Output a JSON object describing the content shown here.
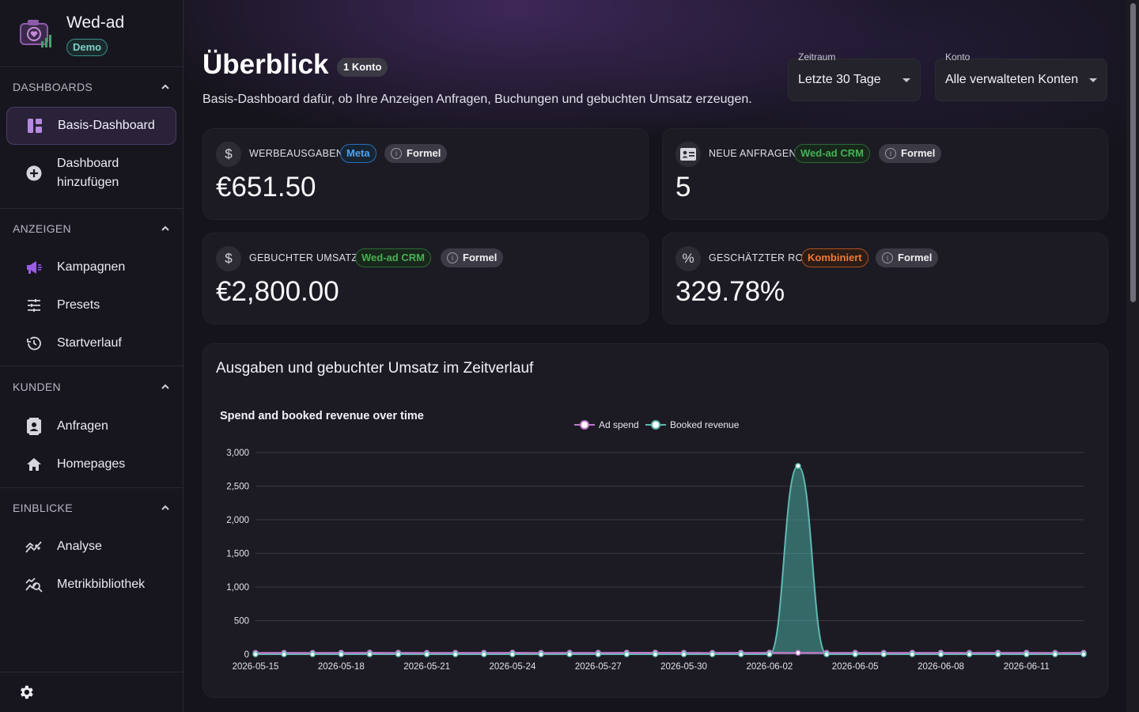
{
  "brand": {
    "name": "Wed-ad",
    "badge": "Demo"
  },
  "sidebar": {
    "sections": [
      {
        "title": "DASHBOARDS",
        "items": [
          {
            "label": "Basis-Dashboard",
            "icon": "dashboard-icon"
          },
          {
            "label": "Dashboard hinzufügen",
            "icon": "add-circle-icon"
          }
        ]
      },
      {
        "title": "ANZEIGEN",
        "items": [
          {
            "label": "Kampagnen",
            "icon": "megaphone-icon"
          },
          {
            "label": "Presets",
            "icon": "tune-icon"
          },
          {
            "label": "Startverlauf",
            "icon": "history-icon"
          }
        ]
      },
      {
        "title": "KUNDEN",
        "items": [
          {
            "label": "Anfragen",
            "icon": "contact-icon"
          },
          {
            "label": "Homepages",
            "icon": "home-icon"
          }
        ]
      },
      {
        "title": "EINBLICKE",
        "items": [
          {
            "label": "Analyse",
            "icon": "analytics-icon"
          },
          {
            "label": "Metrikbibliothek",
            "icon": "query-stats-icon"
          }
        ]
      }
    ]
  },
  "header": {
    "title": "Überblick",
    "badge": "1 Konto",
    "subtitle": "Basis-Dashboard dafür, ob Ihre Anzeigen Anfragen, Buchungen und gebuchten Umsatz erzeugen.",
    "period": {
      "label": "Zeitraum",
      "value": "Letzte 30 Tage"
    },
    "account": {
      "label": "Konto",
      "value": "Alle verwalteten Konten"
    }
  },
  "kpis": [
    {
      "label": "WERBEAUSGABEN",
      "source": "Meta",
      "formula": "Formel",
      "value": "€651.50",
      "icon_glyph": "$"
    },
    {
      "label": "NEUE ANFRAGEN",
      "source": "Wed-ad CRM",
      "formula": "Formel",
      "value": "5",
      "icon_glyph": "id"
    },
    {
      "label": "GEBUCHTER UMSATZ",
      "source": "Wed-ad CRM",
      "formula": "Formel",
      "value": "€2,800.00",
      "icon_glyph": "$"
    },
    {
      "label": "GESCHÄTZTER ROI",
      "source": "Kombiniert",
      "formula": "Formel",
      "value": "329.78%",
      "icon_glyph": "%"
    }
  ],
  "chart_section": {
    "heading": "Ausgaben und gebuchter Umsatz im Zeitverlauf"
  },
  "chart_data": {
    "type": "area",
    "title": "Spend and booked revenue over time",
    "xlabel": "",
    "ylabel": "",
    "ylim": [
      0,
      3000
    ],
    "yticks": [
      0,
      500,
      1000,
      1500,
      2000,
      2500,
      3000
    ],
    "ytick_labels": [
      "0",
      "500",
      "1,000",
      "1,500",
      "2,000",
      "2,500",
      "3,000"
    ],
    "x": [
      "2026-05-15",
      "2026-05-16",
      "2026-05-17",
      "2026-05-18",
      "2026-05-19",
      "2026-05-20",
      "2026-05-21",
      "2026-05-22",
      "2026-05-23",
      "2026-05-24",
      "2026-05-25",
      "2026-05-26",
      "2026-05-27",
      "2026-05-28",
      "2026-05-29",
      "2026-05-30",
      "2026-05-31",
      "2026-06-01",
      "2026-06-02",
      "2026-06-03",
      "2026-06-04",
      "2026-06-05",
      "2026-06-06",
      "2026-06-07",
      "2026-06-08",
      "2026-06-09",
      "2026-06-10",
      "2026-06-11",
      "2026-06-12",
      "2026-06-13"
    ],
    "xtick_labels": [
      "2026-05-15",
      "2026-05-18",
      "2026-05-21",
      "2026-05-24",
      "2026-05-27",
      "2026-05-30",
      "2026-06-02",
      "2026-06-05",
      "2026-06-08",
      "2026-06-11"
    ],
    "legend_position": "top",
    "series": [
      {
        "name": "Ad spend",
        "color": "#c07ac8",
        "values": [
          21,
          22,
          21,
          22,
          23,
          22,
          21,
          22,
          22,
          23,
          21,
          22,
          22,
          23,
          24,
          22,
          21,
          22,
          23,
          22,
          21,
          22,
          21,
          22,
          22,
          21,
          22,
          22,
          21,
          22
        ]
      },
      {
        "name": "Booked revenue",
        "color": "#5fb8b0",
        "values": [
          0,
          0,
          0,
          0,
          0,
          0,
          0,
          0,
          0,
          0,
          0,
          0,
          0,
          0,
          0,
          0,
          0,
          0,
          0,
          2800,
          0,
          0,
          0,
          0,
          0,
          0,
          0,
          0,
          0,
          0
        ]
      }
    ]
  }
}
